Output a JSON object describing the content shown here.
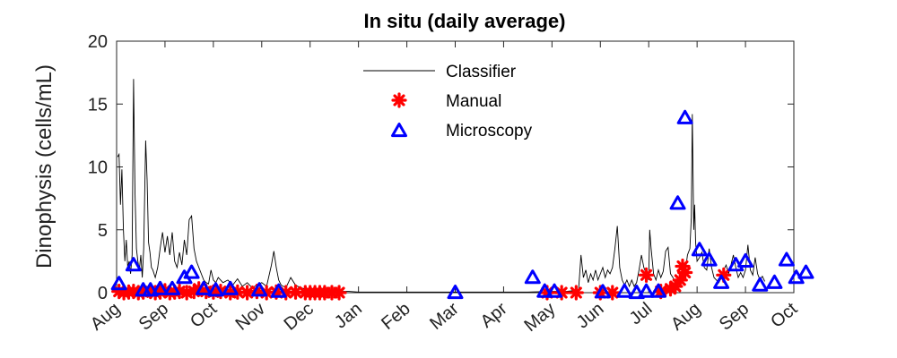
{
  "chart_data": {
    "type": "line",
    "title": "In situ (daily average)",
    "ylabel": "Dinophysis (cells/mL)",
    "xlabel": "",
    "ylim": [
      0,
      20
    ],
    "yticks": [
      0,
      5,
      10,
      15,
      20
    ],
    "xticks": [
      "Aug",
      "Sep",
      "Oct",
      "Nov",
      "Dec",
      "Jan",
      "Feb",
      "Mar",
      "Apr",
      "May",
      "Jun",
      "Jul",
      "Aug",
      "Sep",
      "Oct"
    ],
    "x_units": "months since start of first Aug",
    "grid": false,
    "legend_position": "top-center",
    "series": [
      {
        "name": "Classifier",
        "style": "line",
        "color": "#000000",
        "segments": [
          [
            [
              0.02,
              10.8
            ],
            [
              0.05,
              11.0
            ],
            [
              0.08,
              7.0
            ],
            [
              0.11,
              9.8
            ],
            [
              0.14,
              5.0
            ],
            [
              0.17,
              2.5
            ],
            [
              0.2,
              4.2
            ],
            [
              0.23,
              2.0
            ],
            [
              0.26,
              2.5
            ],
            [
              0.29,
              1.5
            ],
            [
              0.32,
              3.0
            ],
            [
              0.35,
              17.0
            ],
            [
              0.38,
              8.0
            ],
            [
              0.41,
              3.5
            ],
            [
              0.44,
              2.5
            ],
            [
              0.47,
              1.8
            ],
            [
              0.5,
              3.0
            ],
            [
              0.53,
              1.2
            ],
            [
              0.56,
              3.5
            ],
            [
              0.6,
              12.1
            ],
            [
              0.63,
              9.0
            ],
            [
              0.66,
              4.0
            ],
            [
              0.69,
              3.2
            ],
            [
              0.72,
              2.0
            ],
            [
              0.75,
              1.8
            ],
            [
              0.8,
              1.2
            ],
            [
              0.85,
              2.0
            ],
            [
              0.9,
              3.5
            ],
            [
              0.95,
              4.8
            ],
            [
              1.0,
              3.2
            ],
            [
              1.05,
              4.5
            ],
            [
              1.1,
              3.0
            ],
            [
              1.15,
              4.8
            ],
            [
              1.2,
              2.5
            ],
            [
              1.25,
              2.0
            ],
            [
              1.3,
              3.2
            ],
            [
              1.35,
              2.2
            ],
            [
              1.4,
              4.2
            ],
            [
              1.45,
              3.0
            ],
            [
              1.5,
              5.8
            ],
            [
              1.55,
              6.1
            ],
            [
              1.6,
              3.5
            ],
            [
              1.65,
              2.5
            ],
            [
              1.7,
              2.0
            ],
            [
              1.75,
              1.5
            ],
            [
              1.8,
              1.0
            ],
            [
              1.85,
              0.8
            ],
            [
              1.9,
              0.7
            ],
            [
              1.95,
              1.8
            ],
            [
              2.0,
              1.0
            ],
            [
              2.05,
              0.8
            ],
            [
              2.1,
              1.2
            ],
            [
              2.2,
              0.8
            ],
            [
              2.3,
              1.0
            ],
            [
              2.4,
              0.6
            ],
            [
              2.5,
              1.1
            ],
            [
              2.6,
              0.5
            ],
            [
              2.7,
              0.8
            ],
            [
              2.8,
              0.4
            ],
            [
              2.9,
              0.6
            ],
            [
              3.0,
              0.8
            ],
            [
              3.1,
              0.5
            ],
            [
              3.2,
              2.2
            ],
            [
              3.25,
              3.3
            ],
            [
              3.3,
              2.0
            ],
            [
              3.35,
              1.0
            ],
            [
              3.4,
              0.6
            ],
            [
              3.5,
              0.4
            ],
            [
              3.6,
              1.2
            ],
            [
              3.7,
              0.6
            ],
            [
              3.8,
              0.4
            ],
            [
              3.9,
              0.3
            ],
            [
              4.0,
              0.2
            ],
            [
              4.2,
              0.2
            ],
            [
              4.5,
              0.1
            ],
            [
              4.8,
              0.1
            ],
            [
              5.0,
              0.05
            ],
            [
              6.0,
              0.05
            ],
            [
              7.0,
              0.05
            ],
            [
              8.0,
              0.05
            ],
            [
              8.5,
              0.05
            ],
            [
              9.0,
              0.1
            ],
            [
              9.3,
              0.1
            ],
            [
              9.55,
              0.2
            ],
            [
              9.6,
              3.0
            ],
            [
              9.65,
              1.2
            ],
            [
              9.7,
              1.8
            ],
            [
              9.75,
              0.8
            ],
            [
              9.8,
              1.5
            ],
            [
              9.85,
              1.0
            ],
            [
              9.9,
              1.8
            ],
            [
              9.95,
              1.0
            ],
            [
              10.0,
              1.5
            ],
            [
              10.05,
              2.0
            ],
            [
              10.1,
              1.2
            ],
            [
              10.15,
              1.8
            ],
            [
              10.2,
              1.5
            ],
            [
              10.25,
              2.0
            ],
            [
              10.3,
              3.5
            ],
            [
              10.35,
              5.3
            ],
            [
              10.4,
              2.0
            ],
            [
              10.45,
              1.0
            ],
            [
              10.5,
              0.6
            ],
            [
              10.55,
              1.0
            ],
            [
              10.6,
              0.5
            ],
            [
              10.65,
              1.0
            ],
            [
              10.7,
              0.5
            ],
            [
              10.75,
              0.8
            ],
            [
              10.8,
              1.8
            ],
            [
              10.85,
              3.0
            ],
            [
              10.9,
              2.0
            ],
            [
              10.95,
              1.5
            ],
            [
              11.0,
              1.0
            ],
            [
              11.02,
              5.0
            ],
            [
              11.05,
              3.5
            ],
            [
              11.1,
              1.5
            ],
            [
              11.15,
              1.0
            ],
            [
              11.2,
              1.8
            ],
            [
              11.25,
              1.2
            ],
            [
              11.3,
              1.7
            ],
            [
              11.35,
              3.3
            ],
            [
              11.4,
              3.6
            ],
            [
              11.45,
              1.5
            ],
            [
              11.5,
              1.2
            ],
            [
              11.55,
              0.8
            ],
            [
              11.6,
              0.8
            ],
            [
              11.7,
              1.2
            ],
            [
              11.75,
              1.5
            ],
            [
              11.8,
              3.0
            ],
            [
              11.85,
              3.5
            ],
            [
              11.88,
              6.0
            ],
            [
              11.9,
              14.2
            ],
            [
              11.93,
              5.0
            ],
            [
              11.95,
              7.0
            ],
            [
              11.97,
              4.0
            ],
            [
              12.0,
              2.5
            ],
            [
              12.05,
              2.8
            ],
            [
              12.1,
              3.2
            ],
            [
              12.15,
              2.0
            ],
            [
              12.2,
              1.8
            ],
            [
              12.25,
              3.5
            ],
            [
              12.3,
              2.0
            ],
            [
              12.35,
              1.2
            ],
            [
              12.4,
              1.0
            ],
            [
              12.45,
              0.8
            ],
            [
              12.5,
              1.2
            ],
            [
              12.55,
              1.8
            ],
            [
              12.6,
              2.2
            ],
            [
              12.65,
              1.5
            ],
            [
              12.7,
              2.2
            ],
            [
              12.75,
              3.0
            ],
            [
              12.8,
              2.0
            ],
            [
              12.85,
              1.2
            ],
            [
              12.9,
              1.6
            ],
            [
              12.95,
              1.2
            ],
            [
              13.0,
              1.8
            ],
            [
              13.05,
              3.8
            ],
            [
              13.1,
              1.8
            ],
            [
              13.15,
              1.4
            ],
            [
              13.2,
              2.8
            ],
            [
              13.25,
              1.5
            ],
            [
              13.3,
              1.0
            ],
            [
              13.35,
              1.3
            ],
            [
              13.4,
              0.9
            ]
          ]
        ]
      },
      {
        "name": "Manual",
        "style": "marker",
        "marker": "asterisk",
        "color": "#ff0000",
        "points": [
          [
            0.05,
            0.1
          ],
          [
            0.15,
            0.0
          ],
          [
            0.25,
            0.05
          ],
          [
            0.35,
            0.1
          ],
          [
            0.45,
            0.0
          ],
          [
            0.55,
            0.05
          ],
          [
            0.7,
            0.1
          ],
          [
            0.8,
            0.0
          ],
          [
            0.9,
            0.05
          ],
          [
            1.0,
            0.15
          ],
          [
            1.1,
            0.0
          ],
          [
            1.2,
            0.05
          ],
          [
            1.3,
            0.1
          ],
          [
            1.45,
            0.0
          ],
          [
            1.6,
            0.1
          ],
          [
            1.7,
            0.3
          ],
          [
            1.85,
            0.1
          ],
          [
            2.0,
            0.05
          ],
          [
            2.15,
            0.1
          ],
          [
            2.35,
            0.0
          ],
          [
            2.5,
            0.05
          ],
          [
            2.7,
            0.0
          ],
          [
            2.9,
            0.1
          ],
          [
            3.1,
            0.0
          ],
          [
            3.3,
            0.05
          ],
          [
            3.5,
            0.0
          ],
          [
            3.7,
            0.05
          ],
          [
            3.9,
            0.0
          ],
          [
            4.0,
            0.0
          ],
          [
            4.1,
            0.0
          ],
          [
            4.2,
            0.0
          ],
          [
            4.3,
            0.0
          ],
          [
            4.45,
            0.0
          ],
          [
            4.6,
            0.0
          ],
          [
            8.9,
            0.0
          ],
          [
            9.2,
            0.0
          ],
          [
            9.5,
            0.0
          ],
          [
            10.0,
            0.0
          ],
          [
            10.25,
            0.0
          ],
          [
            10.95,
            1.4
          ],
          [
            11.25,
            0.1
          ],
          [
            11.45,
            0.3
          ],
          [
            11.55,
            0.5
          ],
          [
            11.65,
            1.0
          ],
          [
            11.7,
            2.1
          ],
          [
            11.75,
            1.6
          ],
          [
            12.55,
            1.4
          ]
        ]
      },
      {
        "name": "Microscopy",
        "style": "marker",
        "marker": "triangle",
        "color": "#0000ff",
        "points": [
          [
            0.05,
            0.7
          ],
          [
            0.35,
            2.2
          ],
          [
            0.55,
            0.2
          ],
          [
            0.7,
            0.2
          ],
          [
            0.9,
            0.3
          ],
          [
            1.15,
            0.3
          ],
          [
            1.4,
            1.2
          ],
          [
            1.55,
            1.6
          ],
          [
            1.8,
            0.3
          ],
          [
            2.05,
            0.2
          ],
          [
            2.35,
            0.3
          ],
          [
            2.95,
            0.2
          ],
          [
            3.35,
            0.1
          ],
          [
            7.0,
            0.0
          ],
          [
            8.6,
            1.2
          ],
          [
            8.85,
            0.1
          ],
          [
            9.05,
            0.1
          ],
          [
            10.05,
            0.05
          ],
          [
            10.5,
            0.1
          ],
          [
            10.75,
            0.0
          ],
          [
            10.95,
            0.1
          ],
          [
            11.2,
            0.1
          ],
          [
            11.6,
            7.1
          ],
          [
            11.75,
            13.9
          ],
          [
            12.05,
            3.4
          ],
          [
            12.25,
            2.6
          ],
          [
            12.5,
            0.8
          ],
          [
            12.8,
            2.2
          ],
          [
            13.0,
            2.5
          ],
          [
            13.3,
            0.6
          ],
          [
            13.6,
            0.8
          ],
          [
            13.85,
            2.6
          ],
          [
            14.05,
            1.2
          ],
          [
            14.25,
            1.6
          ]
        ]
      }
    ]
  }
}
